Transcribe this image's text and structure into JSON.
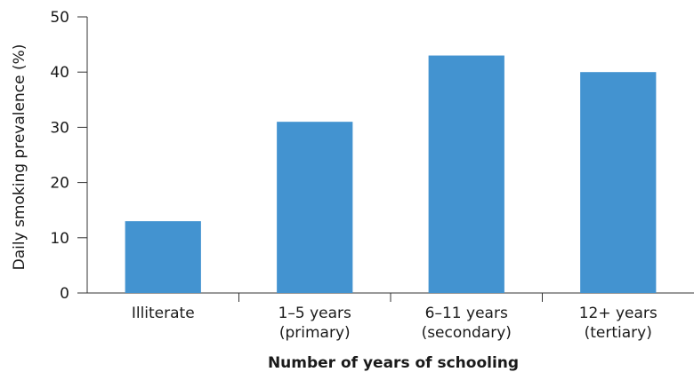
{
  "chart_data": {
    "type": "bar",
    "categories": [
      [
        "Illiterate"
      ],
      [
        "1–5 years",
        "(primary)"
      ],
      [
        "6–11 years",
        "(secondary)"
      ],
      [
        "12+ years",
        "(tertiary)"
      ]
    ],
    "values": [
      13,
      31,
      43,
      40
    ],
    "xlabel": "Number of years of schooling",
    "ylabel": "Daily smoking prevalence (%)",
    "ylim": [
      0,
      50
    ],
    "yticks": [
      0,
      10,
      20,
      30,
      40,
      50
    ],
    "bar_color": "#4393d0",
    "axis_color": "#333333",
    "grid": false,
    "legend": "none"
  }
}
